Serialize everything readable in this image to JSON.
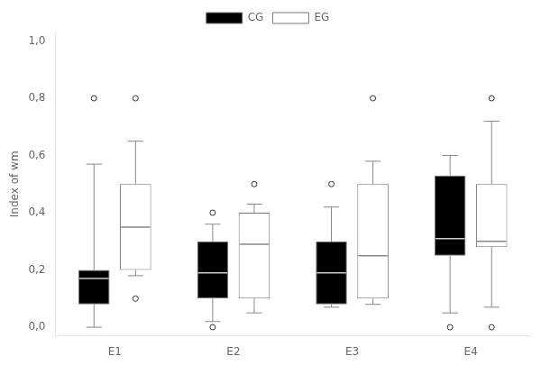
{
  "chart_data": {
    "type": "box",
    "categories": [
      "E1",
      "E2",
      "E3",
      "E4"
    ],
    "series": [
      {
        "name": "CG",
        "color": "#000000",
        "whislo": [
          0.0,
          0.02,
          0.07,
          0.05
        ],
        "q1": [
          0.08,
          0.1,
          0.08,
          0.25
        ],
        "med": [
          0.17,
          0.19,
          0.19,
          0.31
        ],
        "q3": [
          0.2,
          0.3,
          0.3,
          0.53
        ],
        "whishi": [
          0.57,
          0.36,
          0.42,
          0.6
        ],
        "fliers": [
          [
            0.8
          ],
          [
            0.0,
            0.4
          ],
          [
            0.5
          ],
          [
            0.0
          ]
        ]
      },
      {
        "name": "EG",
        "color": "#ffffff",
        "whislo": [
          0.18,
          0.05,
          0.08,
          0.07
        ],
        "q1": [
          0.2,
          0.1,
          0.1,
          0.28
        ],
        "med": [
          0.35,
          0.29,
          0.25,
          0.3
        ],
        "q3": [
          0.5,
          0.4,
          0.5,
          0.5
        ],
        "whishi": [
          0.65,
          0.43,
          0.58,
          0.72
        ],
        "fliers": [
          [
            0.1,
            0.8
          ],
          [
            0.5
          ],
          [
            0.8
          ],
          [
            0.0,
            0.8
          ]
        ]
      }
    ],
    "ylabel": "Index of wm",
    "ylim": [
      -0.03,
      1.03
    ],
    "yticks": [
      {
        "value": 0.0,
        "label": "0,0"
      },
      {
        "value": 0.2,
        "label": "0,2"
      },
      {
        "value": 0.4,
        "label": "0,4"
      },
      {
        "value": 0.6,
        "label": "0,6"
      },
      {
        "value": 0.8,
        "label": "0,8"
      },
      {
        "value": 1.0,
        "label": "1,0"
      }
    ],
    "grid": false,
    "legend": "top"
  }
}
